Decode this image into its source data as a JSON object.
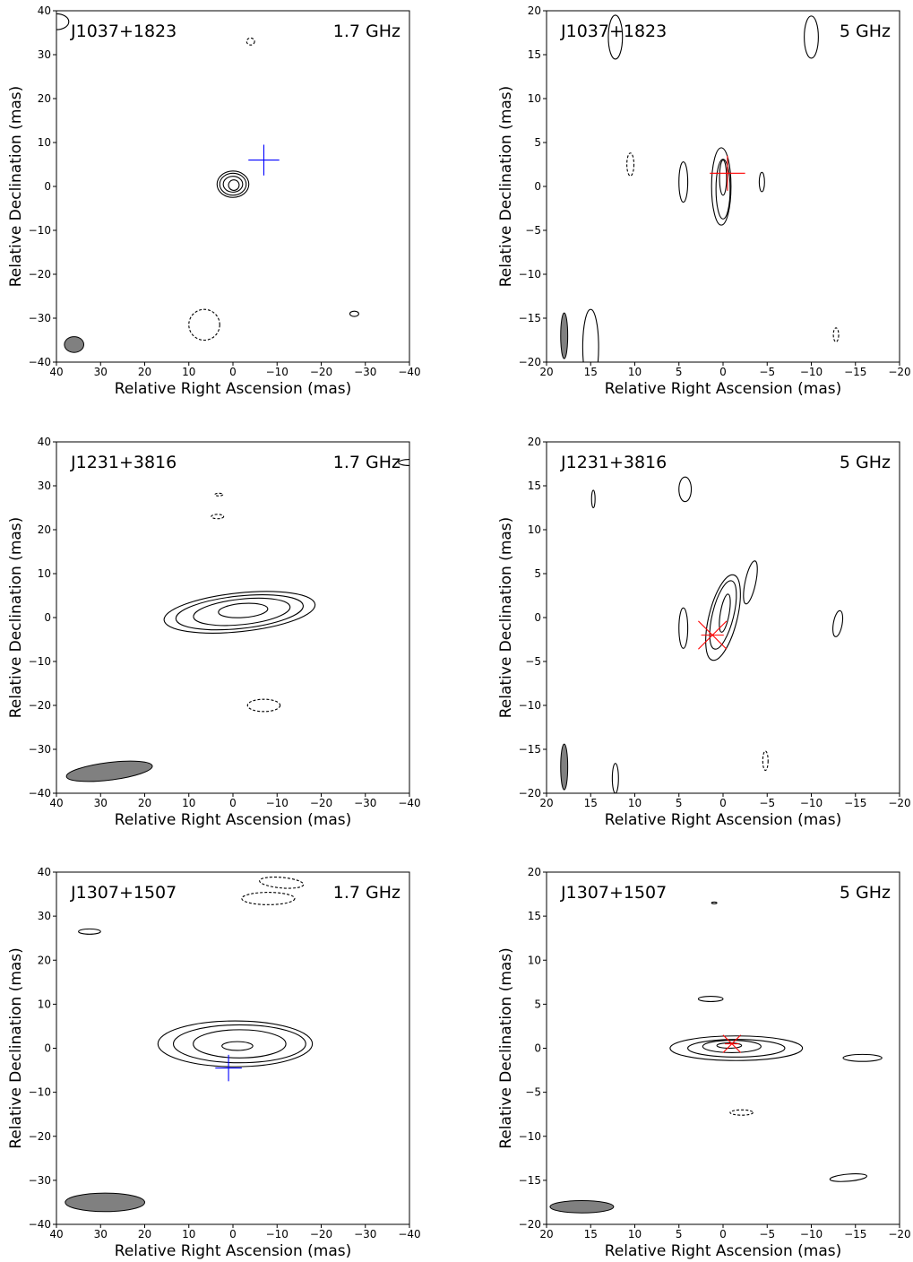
{
  "xlabel": "Relative Right Ascension (mas)",
  "ylabel": "Relative Declination (mas)",
  "chart_data": [
    {
      "type": "contour",
      "source": "J1037+1823",
      "freq": "1.7 GHz",
      "xlim": [
        40,
        -40
      ],
      "ylim": [
        -40,
        40
      ],
      "xticks": [
        40,
        30,
        20,
        10,
        0,
        -10,
        -20,
        -30,
        -40
      ],
      "yticks": [
        -40,
        -30,
        -20,
        -10,
        0,
        10,
        20,
        30,
        40
      ],
      "beam": {
        "x": 36,
        "y": -36,
        "a": 2.2,
        "b": 1.8,
        "angle": 0
      },
      "marker": {
        "x": -7,
        "y": 6,
        "color": "#0000ff",
        "style": "plus",
        "size": 3.5
      },
      "contours": [
        {
          "x": 0,
          "y": 0.5,
          "a": 3.6,
          "b": 3.0,
          "angle": 0,
          "dashed": false
        },
        {
          "x": 0,
          "y": 0.5,
          "a": 3.0,
          "b": 2.5,
          "angle": 0,
          "dashed": false
        },
        {
          "x": 0,
          "y": 0.5,
          "a": 2.2,
          "b": 1.8,
          "angle": 0,
          "dashed": false
        },
        {
          "x": -0.2,
          "y": 0.3,
          "a": 1.2,
          "b": 1.2,
          "angle": 0,
          "dashed": false
        },
        {
          "x": -4,
          "y": 33,
          "a": 0.9,
          "b": 0.8,
          "angle": 0,
          "dashed": true
        },
        {
          "x": 6.5,
          "y": -31.5,
          "a": 3.5,
          "b": 3.5,
          "angle": 0,
          "dashed": true
        },
        {
          "x": -27.5,
          "y": -29,
          "a": 1.0,
          "b": 0.6,
          "angle": 0,
          "dashed": false
        },
        {
          "x": 40,
          "y": 37.5,
          "a": 2.8,
          "b": 1.8,
          "angle": 0,
          "dashed": false
        }
      ]
    },
    {
      "type": "contour",
      "source": "J1037+1823",
      "freq": "5 GHz",
      "xlim": [
        20,
        -20
      ],
      "ylim": [
        -20,
        20
      ],
      "xticks": [
        20,
        15,
        10,
        5,
        0,
        -5,
        -10,
        -15,
        -20
      ],
      "yticks": [
        -20,
        -15,
        -10,
        -5,
        0,
        5,
        10,
        15,
        20
      ],
      "beam": {
        "x": 18,
        "y": -17,
        "a": 0.4,
        "b": 2.6,
        "angle": 0
      },
      "marker": {
        "x": -0.5,
        "y": 1.5,
        "color": "#ff0000",
        "style": "plus",
        "size": 2
      },
      "contours": [
        {
          "x": 0.2,
          "y": 0,
          "a": 1.1,
          "b": 4.4,
          "angle": 0,
          "dashed": false
        },
        {
          "x": 0,
          "y": -0.3,
          "a": 0.8,
          "b": 3.4,
          "angle": 0,
          "dashed": false
        },
        {
          "x": 0,
          "y": 1,
          "a": 0.4,
          "b": 2.0,
          "angle": 0,
          "dashed": false
        },
        {
          "x": 4.5,
          "y": 0.5,
          "a": 0.5,
          "b": 2.3,
          "angle": 0,
          "dashed": false
        },
        {
          "x": -4.4,
          "y": 0.5,
          "a": 0.3,
          "b": 1.1,
          "angle": 0,
          "dashed": false
        },
        {
          "x": 10.5,
          "y": 2.5,
          "a": 0.4,
          "b": 1.3,
          "angle": 0,
          "dashed": true
        },
        {
          "x": 12.2,
          "y": 17,
          "a": 0.8,
          "b": 2.5,
          "angle": 0,
          "dashed": false
        },
        {
          "x": -10,
          "y": 17,
          "a": 0.8,
          "b": 2.4,
          "angle": 0,
          "dashed": false
        },
        {
          "x": -12.8,
          "y": -16.9,
          "a": 0.3,
          "b": 0.8,
          "angle": 0,
          "dashed": true
        },
        {
          "x": 15,
          "y": -18.3,
          "a": 0.9,
          "b": 4.3,
          "angle": 0,
          "dashed": false
        }
      ]
    },
    {
      "type": "contour",
      "source": "J1231+3816",
      "freq": "1.7 GHz",
      "xlim": [
        40,
        -40
      ],
      "ylim": [
        -40,
        40
      ],
      "xticks": [
        40,
        30,
        20,
        10,
        0,
        -10,
        -20,
        -30,
        -40
      ],
      "yticks": [
        -40,
        -30,
        -20,
        -10,
        0,
        10,
        20,
        30,
        40
      ],
      "beam": {
        "x": 28,
        "y": -35,
        "a": 9.8,
        "b": 2.0,
        "angle": 7
      },
      "marker": null,
      "contours": [
        {
          "x": -1.5,
          "y": 1.2,
          "a": 17.2,
          "b": 4.4,
          "angle": 6,
          "dashed": false
        },
        {
          "x": -1.5,
          "y": 1.2,
          "a": 14.5,
          "b": 3.7,
          "angle": 6,
          "dashed": false
        },
        {
          "x": -2.0,
          "y": 1.3,
          "a": 11.0,
          "b": 2.9,
          "angle": 6,
          "dashed": false
        },
        {
          "x": -2.3,
          "y": 1.6,
          "a": 5.6,
          "b": 1.6,
          "angle": 4,
          "dashed": false
        },
        {
          "x": -7,
          "y": -20,
          "a": 3.7,
          "b": 1.4,
          "angle": 0,
          "dashed": true
        },
        {
          "x": 3.5,
          "y": 23,
          "a": 1.4,
          "b": 0.5,
          "angle": 0,
          "dashed": true
        },
        {
          "x": 3.2,
          "y": 28,
          "a": 0.9,
          "b": 0.3,
          "angle": 0,
          "dashed": true
        },
        {
          "x": -40,
          "y": 35.3,
          "a": 2.5,
          "b": 0.7,
          "angle": 0,
          "dashed": false
        }
      ]
    },
    {
      "type": "contour",
      "source": "J1231+3816",
      "freq": "5 GHz",
      "xlim": [
        20,
        -20
      ],
      "ylim": [
        -20,
        20
      ],
      "xticks": [
        20,
        15,
        10,
        5,
        0,
        -5,
        -10,
        -15,
        -20
      ],
      "yticks": [
        -20,
        -15,
        -10,
        -5,
        0,
        5,
        10,
        15,
        20
      ],
      "beam": {
        "x": 18,
        "y": -17,
        "a": 0.4,
        "b": 2.6,
        "angle": 0
      },
      "marker": {
        "x": 1.2,
        "y": -2,
        "color": "#ff0000",
        "style": "x",
        "size": 1.6
      },
      "contours": [
        {
          "x": 0,
          "y": 0,
          "a": 1.6,
          "b": 5.0,
          "angle": -14,
          "dashed": false
        },
        {
          "x": 0,
          "y": 0.3,
          "a": 1.2,
          "b": 4.0,
          "angle": -14,
          "dashed": false
        },
        {
          "x": -0.2,
          "y": 0.5,
          "a": 0.5,
          "b": 2.2,
          "angle": -10,
          "dashed": false
        },
        {
          "x": -3.1,
          "y": 4,
          "a": 0.6,
          "b": 2.5,
          "angle": -12,
          "dashed": false
        },
        {
          "x": 4.5,
          "y": -1.2,
          "a": 0.5,
          "b": 2.3,
          "angle": 0,
          "dashed": false
        },
        {
          "x": -13,
          "y": -0.7,
          "a": 0.5,
          "b": 1.5,
          "angle": -10,
          "dashed": false
        },
        {
          "x": 4.3,
          "y": 14.6,
          "a": 0.7,
          "b": 1.4,
          "angle": 0,
          "dashed": false
        },
        {
          "x": 14.7,
          "y": 13.5,
          "a": 0.2,
          "b": 1.0,
          "angle": 0,
          "dashed": false
        },
        {
          "x": 12.2,
          "y": -18.3,
          "a": 0.35,
          "b": 1.7,
          "angle": 0,
          "dashed": false
        },
        {
          "x": -4.8,
          "y": -16.3,
          "a": 0.3,
          "b": 1.1,
          "angle": 0,
          "dashed": true
        }
      ]
    },
    {
      "type": "contour",
      "source": "J1307+1507",
      "freq": "1.7 GHz",
      "xlim": [
        40,
        -40
      ],
      "ylim": [
        -40,
        40
      ],
      "xticks": [
        40,
        30,
        20,
        10,
        0,
        -10,
        -20,
        -30,
        -40
      ],
      "yticks": [
        -40,
        -30,
        -20,
        -10,
        0,
        10,
        20,
        30,
        40
      ],
      "beam": {
        "x": 29,
        "y": -35,
        "a": 9.0,
        "b": 2.1,
        "angle": 0
      },
      "marker": {
        "x": 1,
        "y": -4.5,
        "color": "#0000ff",
        "style": "plus",
        "size": 3
      },
      "contours": [
        {
          "x": -0.5,
          "y": 1,
          "a": 17.5,
          "b": 5.2,
          "angle": 0,
          "dashed": false
        },
        {
          "x": -1.5,
          "y": 1,
          "a": 15.0,
          "b": 4.3,
          "angle": 0,
          "dashed": false
        },
        {
          "x": -1.5,
          "y": 1,
          "a": 10.5,
          "b": 3.2,
          "angle": 0,
          "dashed": false
        },
        {
          "x": -1.0,
          "y": 0.5,
          "a": 3.5,
          "b": 1.0,
          "angle": 0,
          "dashed": false
        },
        {
          "x": -11,
          "y": 37.6,
          "a": 5.0,
          "b": 1.2,
          "angle": -5,
          "dashed": true
        },
        {
          "x": -8,
          "y": 34,
          "a": 6.0,
          "b": 1.4,
          "angle": 0,
          "dashed": true
        },
        {
          "x": 32.5,
          "y": 26.5,
          "a": 2.5,
          "b": 0.6,
          "angle": 0,
          "dashed": false
        }
      ]
    },
    {
      "type": "contour",
      "source": "J1307+1507",
      "freq": "5 GHz",
      "xlim": [
        20,
        -20
      ],
      "ylim": [
        -20,
        20
      ],
      "xticks": [
        20,
        15,
        10,
        5,
        0,
        -5,
        -10,
        -15,
        -20
      ],
      "yticks": [
        -20,
        -15,
        -10,
        -5,
        0,
        5,
        10,
        15,
        20
      ],
      "beam": {
        "x": 16,
        "y": -18,
        "a": 3.6,
        "b": 0.7,
        "angle": 0
      },
      "marker": {
        "x": -1,
        "y": 0.5,
        "color": "#ff0000",
        "style": "x",
        "size": 1
      },
      "contours": [
        {
          "x": -1.5,
          "y": 0,
          "a": 7.5,
          "b": 1.4,
          "angle": 0,
          "dashed": false
        },
        {
          "x": -1.5,
          "y": 0,
          "a": 5.5,
          "b": 1.0,
          "angle": 0,
          "dashed": false
        },
        {
          "x": -1.0,
          "y": 0.2,
          "a": 3.3,
          "b": 0.7,
          "angle": 0,
          "dashed": false
        },
        {
          "x": -0.7,
          "y": 0.3,
          "a": 1.4,
          "b": 0.3,
          "angle": 0,
          "dashed": false
        },
        {
          "x": 1.4,
          "y": 5.6,
          "a": 1.4,
          "b": 0.3,
          "angle": 0,
          "dashed": false
        },
        {
          "x": -2.1,
          "y": -7.3,
          "a": 1.3,
          "b": 0.3,
          "angle": 0,
          "dashed": true
        },
        {
          "x": -15.8,
          "y": -1.1,
          "a": 2.2,
          "b": 0.4,
          "angle": 0,
          "dashed": false
        },
        {
          "x": -14.2,
          "y": -14.7,
          "a": 2.1,
          "b": 0.4,
          "angle": 5,
          "dashed": false
        },
        {
          "x": 1.0,
          "y": 16.5,
          "a": 0.3,
          "b": 0.1,
          "angle": 0,
          "dashed": false
        }
      ]
    }
  ]
}
